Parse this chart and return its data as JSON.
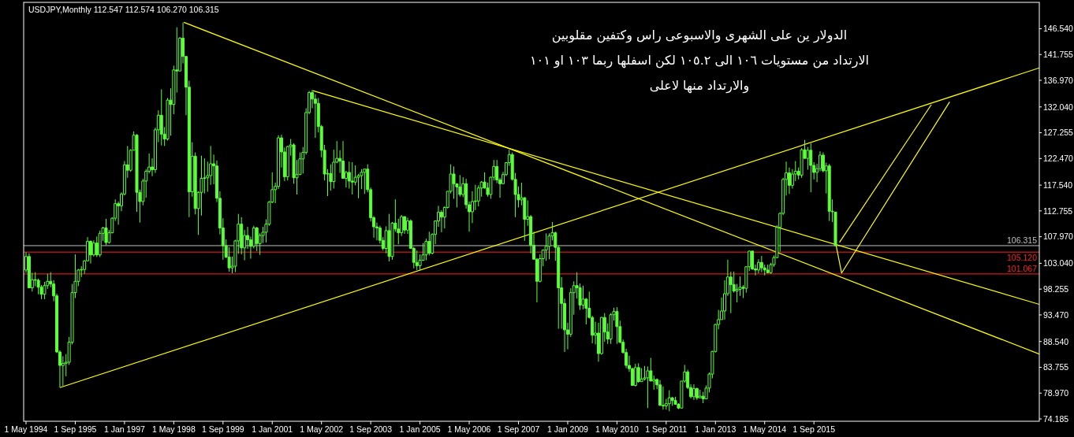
{
  "chart_data": {
    "type": "candlestick",
    "title": "USDJPY,Monthly  112.547 112.574 106.270 106.315",
    "annotations": [
      "الدولار ين على الشهرى والاسبوعى راس وكتفين مقلوبين",
      "الارتداد من مستويات ١٠٦ الى ١٠٥.٢ لكن اسفلها ربما ١٠٣ او ١٠١",
      "والارتداد منها لاعلى"
    ],
    "color": "#5cff3a",
    "x": [
      "1994-05",
      "1994-06",
      "1994-07",
      "1994-08",
      "1994-09",
      "1994-10",
      "1994-11",
      "1994-12",
      "1995-01",
      "1995-02",
      "1995-03",
      "1995-04",
      "1995-05",
      "1995-06",
      "1995-07",
      "1995-08",
      "1995-09",
      "1995-10",
      "1995-11",
      "1995-12",
      "1996-01",
      "1996-02",
      "1996-03",
      "1996-04",
      "1996-05",
      "1996-06",
      "1996-07",
      "1996-08",
      "1996-09",
      "1996-10",
      "1996-11",
      "1996-12",
      "1997-01",
      "1997-02",
      "1997-03",
      "1997-04",
      "1997-05",
      "1997-06",
      "1997-07",
      "1997-08",
      "1997-09",
      "1997-10",
      "1997-11",
      "1997-12",
      "1998-01",
      "1998-02",
      "1998-03",
      "1998-04",
      "1998-05",
      "1998-06",
      "1998-07",
      "1998-08",
      "1998-09",
      "1998-10",
      "1998-11",
      "1998-12",
      "1999-01",
      "1999-02",
      "1999-03",
      "1999-04",
      "1999-05",
      "1999-06",
      "1999-07",
      "1999-08",
      "1999-09",
      "1999-10",
      "1999-11",
      "1999-12",
      "2000-01",
      "2000-02",
      "2000-03",
      "2000-04",
      "2000-05",
      "2000-06",
      "2000-07",
      "2000-08",
      "2000-09",
      "2000-10",
      "2000-11",
      "2000-12",
      "2001-01",
      "2001-02",
      "2001-03",
      "2001-04",
      "2001-05",
      "2001-06",
      "2001-07",
      "2001-08",
      "2001-09",
      "2001-10",
      "2001-11",
      "2001-12",
      "2002-01",
      "2002-02",
      "2002-03",
      "2002-04",
      "2002-05",
      "2002-06",
      "2002-07",
      "2002-08",
      "2002-09",
      "2002-10",
      "2002-11",
      "2002-12",
      "2003-01",
      "2003-02",
      "2003-03",
      "2003-04",
      "2003-05",
      "2003-06",
      "2003-07",
      "2003-08",
      "2003-09",
      "2003-10",
      "2003-11",
      "2003-12",
      "2004-01",
      "2004-02",
      "2004-03",
      "2004-04",
      "2004-05",
      "2004-06",
      "2004-07",
      "2004-08",
      "2004-09",
      "2004-10",
      "2004-11",
      "2004-12",
      "2005-01",
      "2005-02",
      "2005-03",
      "2005-04",
      "2005-05",
      "2005-06",
      "2005-07",
      "2005-08",
      "2005-09",
      "2005-10",
      "2005-11",
      "2005-12",
      "2006-01",
      "2006-02",
      "2006-03",
      "2006-04",
      "2006-05",
      "2006-06",
      "2006-07",
      "2006-08",
      "2006-09",
      "2006-10",
      "2006-11",
      "2006-12",
      "2007-01",
      "2007-02",
      "2007-03",
      "2007-04",
      "2007-05",
      "2007-06",
      "2007-07",
      "2007-08",
      "2007-09",
      "2007-10",
      "2007-11",
      "2007-12",
      "2008-01",
      "2008-02",
      "2008-03",
      "2008-04",
      "2008-05",
      "2008-06",
      "2008-07",
      "2008-08",
      "2008-09",
      "2008-10",
      "2008-11",
      "2008-12",
      "2009-01",
      "2009-02",
      "2009-03",
      "2009-04",
      "2009-05",
      "2009-06",
      "2009-07",
      "2009-08",
      "2009-09",
      "2009-10",
      "2009-11",
      "2009-12",
      "2010-01",
      "2010-02",
      "2010-03",
      "2010-04",
      "2010-05",
      "2010-06",
      "2010-07",
      "2010-08",
      "2010-09",
      "2010-10",
      "2010-11",
      "2010-12",
      "2011-01",
      "2011-02",
      "2011-03",
      "2011-04",
      "2011-05",
      "2011-06",
      "2011-07",
      "2011-08",
      "2011-09",
      "2011-10",
      "2011-11",
      "2011-12",
      "2012-01",
      "2012-02",
      "2012-03",
      "2012-04",
      "2012-05",
      "2012-06",
      "2012-07",
      "2012-08",
      "2012-09",
      "2012-10",
      "2012-11",
      "2012-12",
      "2013-01",
      "2013-02",
      "2013-03",
      "2013-04",
      "2013-05",
      "2013-06",
      "2013-07",
      "2013-08",
      "2013-09",
      "2013-10",
      "2013-11",
      "2013-12",
      "2014-01",
      "2014-02",
      "2014-03",
      "2014-04",
      "2014-05",
      "2014-06",
      "2014-07",
      "2014-08",
      "2014-09",
      "2014-10",
      "2014-11",
      "2014-12",
      "2015-01",
      "2015-02",
      "2015-03",
      "2015-04",
      "2015-05",
      "2015-06",
      "2015-07",
      "2015-08",
      "2015-09",
      "2015-10",
      "2015-11",
      "2015-12",
      "2016-01",
      "2016-02",
      "2016-03",
      "2016-04"
    ],
    "ohlc": [
      [
        101.8,
        105.1,
        101.3,
        104.3
      ],
      [
        104.3,
        104.9,
        98.4,
        98.5
      ],
      [
        98.5,
        101.3,
        97.8,
        100.0
      ],
      [
        100.0,
        101.4,
        98.8,
        99.9
      ],
      [
        99.9,
        100.2,
        97.3,
        98.6
      ],
      [
        98.6,
        99.0,
        96.4,
        97.3
      ],
      [
        97.3,
        99.6,
        96.4,
        98.9
      ],
      [
        98.9,
        101.1,
        98.3,
        99.7
      ],
      [
        99.7,
        101.4,
        98.6,
        99.2
      ],
      [
        99.2,
        99.9,
        96.0,
        97.0
      ],
      [
        97.0,
        97.4,
        86.4,
        86.6
      ],
      [
        86.6,
        86.9,
        80.0,
        84.1
      ],
      [
        84.1,
        85.8,
        80.3,
        84.5
      ],
      [
        84.5,
        86.2,
        82.1,
        84.7
      ],
      [
        84.7,
        89.4,
        84.2,
        88.4
      ],
      [
        88.4,
        99.2,
        88.0,
        97.6
      ],
      [
        97.6,
        104.7,
        96.6,
        99.7
      ],
      [
        99.7,
        102.0,
        98.8,
        101.8
      ],
      [
        101.8,
        102.5,
        100.5,
        101.9
      ],
      [
        101.9,
        103.6,
        101.1,
        103.5
      ],
      [
        103.5,
        107.9,
        103.4,
        107.1
      ],
      [
        107.1,
        107.3,
        103.0,
        104.6
      ],
      [
        104.6,
        107.3,
        104.3,
        106.8
      ],
      [
        106.8,
        108.0,
        104.2,
        104.6
      ],
      [
        104.6,
        109.1,
        104.2,
        108.6
      ],
      [
        108.6,
        109.8,
        107.2,
        109.6
      ],
      [
        109.6,
        111.3,
        106.4,
        106.9
      ],
      [
        106.9,
        109.2,
        106.7,
        108.7
      ],
      [
        108.7,
        111.6,
        108.6,
        111.4
      ],
      [
        111.4,
        114.9,
        110.9,
        114.1
      ],
      [
        114.1,
        114.5,
        110.2,
        113.7
      ],
      [
        113.7,
        116.2,
        112.7,
        115.9
      ],
      [
        115.9,
        122.0,
        115.6,
        121.3
      ],
      [
        121.3,
        124.8,
        118.9,
        120.3
      ],
      [
        120.3,
        124.2,
        120.0,
        124.0
      ],
      [
        124.0,
        127.5,
        124.0,
        126.8
      ],
      [
        126.8,
        127.0,
        112.6,
        116.2
      ],
      [
        116.2,
        116.7,
        110.6,
        114.5
      ],
      [
        114.5,
        118.7,
        113.8,
        118.3
      ],
      [
        118.3,
        120.5,
        115.2,
        120.1
      ],
      [
        120.1,
        123.4,
        119.7,
        120.9
      ],
      [
        120.9,
        122.5,
        119.2,
        120.4
      ],
      [
        120.4,
        128.2,
        119.8,
        127.8
      ],
      [
        127.8,
        131.4,
        125.5,
        130.5
      ],
      [
        130.5,
        135.3,
        124.9,
        127.0
      ],
      [
        127.0,
        128.3,
        124.8,
        126.1
      ],
      [
        126.1,
        133.7,
        125.8,
        133.3
      ],
      [
        133.3,
        135.5,
        126.7,
        132.5
      ],
      [
        132.5,
        139.7,
        130.7,
        138.9
      ],
      [
        138.9,
        146.8,
        134.7,
        138.7
      ],
      [
        138.7,
        145.0,
        138.7,
        144.8
      ],
      [
        144.8,
        147.7,
        140.1,
        141.4
      ],
      [
        141.4,
        141.5,
        130.5,
        135.7
      ],
      [
        135.7,
        136.9,
        111.6,
        116.3
      ],
      [
        116.3,
        125.5,
        115.4,
        122.9
      ],
      [
        122.9,
        123.6,
        112.1,
        113.2
      ],
      [
        113.2,
        116.4,
        108.3,
        116.2
      ],
      [
        116.2,
        123.0,
        111.9,
        118.8
      ],
      [
        118.8,
        122.5,
        116.0,
        118.9
      ],
      [
        118.9,
        121.9,
        116.3,
        119.3
      ],
      [
        119.3,
        124.8,
        117.6,
        121.5
      ],
      [
        121.5,
        123.2,
        117.7,
        121.1
      ],
      [
        121.1,
        122.1,
        114.4,
        115.1
      ],
      [
        115.1,
        116.4,
        108.4,
        109.6
      ],
      [
        109.6,
        111.4,
        103.7,
        106.3
      ],
      [
        106.3,
        107.5,
        104.0,
        104.2
      ],
      [
        104.2,
        106.0,
        101.5,
        102.2
      ],
      [
        102.2,
        104.3,
        101.2,
        102.5
      ],
      [
        102.5,
        107.4,
        101.4,
        107.2
      ],
      [
        107.2,
        112.2,
        104.8,
        110.3
      ],
      [
        110.3,
        111.6,
        104.7,
        105.9
      ],
      [
        105.9,
        109.2,
        103.6,
        108.2
      ],
      [
        108.2,
        109.8,
        105.7,
        107.4
      ],
      [
        107.4,
        108.0,
        103.9,
        106.2
      ],
      [
        106.2,
        110.0,
        105.8,
        109.6
      ],
      [
        109.6,
        109.8,
        105.3,
        106.7
      ],
      [
        106.7,
        108.6,
        104.6,
        108.2
      ],
      [
        108.2,
        109.8,
        106.8,
        108.8
      ],
      [
        108.8,
        111.2,
        106.9,
        110.3
      ],
      [
        110.3,
        114.6,
        110.0,
        114.4
      ],
      [
        114.4,
        119.9,
        114.2,
        116.7
      ],
      [
        116.7,
        118.0,
        114.2,
        117.3
      ],
      [
        117.3,
        126.8,
        116.8,
        126.3
      ],
      [
        126.3,
        126.9,
        120.8,
        123.7
      ],
      [
        123.7,
        124.5,
        118.3,
        119.1
      ],
      [
        119.1,
        124.8,
        118.4,
        124.7
      ],
      [
        124.7,
        126.1,
        123.0,
        125.0
      ],
      [
        125.0,
        125.3,
        117.8,
        118.9
      ],
      [
        118.9,
        122.2,
        115.8,
        119.5
      ],
      [
        119.5,
        123.6,
        119.4,
        122.4
      ],
      [
        122.4,
        124.6,
        119.7,
        123.6
      ],
      [
        123.6,
        131.8,
        123.2,
        131.0
      ],
      [
        131.0,
        135.0,
        130.7,
        134.7
      ],
      [
        134.7,
        135.2,
        131.8,
        133.5
      ],
      [
        133.5,
        134.4,
        126.3,
        132.7
      ],
      [
        132.7,
        133.7,
        127.3,
        128.4
      ],
      [
        128.4,
        128.7,
        122.7,
        124.0
      ],
      [
        124.0,
        125.0,
        118.4,
        119.6
      ],
      [
        119.6,
        120.5,
        115.5,
        119.7
      ],
      [
        119.7,
        121.4,
        116.5,
        118.2
      ],
      [
        118.2,
        124.1,
        116.9,
        121.8
      ],
      [
        121.8,
        125.7,
        121.6,
        122.5
      ],
      [
        122.5,
        124.0,
        119.8,
        122.0
      ],
      [
        122.0,
        125.7,
        118.8,
        118.8
      ],
      [
        118.8,
        120.2,
        117.1,
        119.9
      ],
      [
        119.9,
        121.9,
        116.9,
        118.3
      ],
      [
        118.3,
        121.8,
        115.8,
        118.1
      ],
      [
        118.1,
        121.2,
        117.5,
        119.0
      ],
      [
        119.0,
        119.6,
        115.1,
        119.3
      ],
      [
        119.3,
        120.5,
        116.8,
        119.9
      ],
      [
        119.9,
        120.6,
        115.9,
        120.5
      ],
      [
        120.5,
        121.4,
        116.2,
        116.7
      ],
      [
        116.7,
        117.1,
        110.8,
        111.5
      ],
      [
        111.5,
        111.8,
        107.8,
        109.8
      ],
      [
        109.8,
        110.6,
        107.3,
        109.6
      ],
      [
        109.6,
        110.0,
        106.7,
        107.3
      ],
      [
        107.3,
        107.9,
        105.4,
        105.8
      ],
      [
        105.8,
        109.9,
        104.9,
        109.1
      ],
      [
        109.1,
        112.2,
        103.4,
        104.3
      ],
      [
        104.3,
        110.7,
        103.7,
        110.5
      ],
      [
        110.5,
        114.9,
        108.9,
        109.4
      ],
      [
        109.4,
        111.3,
        106.6,
        108.7
      ],
      [
        108.7,
        112.0,
        108.1,
        111.7
      ],
      [
        111.7,
        111.7,
        108.5,
        109.2
      ],
      [
        109.2,
        111.5,
        108.5,
        110.9
      ],
      [
        110.9,
        111.2,
        105.7,
        105.8
      ],
      [
        105.8,
        106.1,
        102.1,
        103.2
      ],
      [
        103.2,
        105.4,
        101.8,
        102.6
      ],
      [
        102.6,
        104.7,
        101.7,
        103.6
      ],
      [
        103.6,
        106.8,
        103.5,
        104.6
      ],
      [
        104.6,
        107.6,
        103.6,
        107.1
      ],
      [
        107.1,
        108.9,
        104.5,
        104.9
      ],
      [
        104.9,
        108.6,
        104.7,
        108.4
      ],
      [
        108.4,
        111.0,
        106.6,
        110.9
      ],
      [
        110.9,
        113.7,
        109.8,
        112.5
      ],
      [
        112.5,
        112.9,
        108.8,
        111.6
      ],
      [
        111.6,
        113.6,
        109.5,
        113.4
      ],
      [
        113.4,
        116.4,
        113.2,
        116.4
      ],
      [
        116.4,
        121.4,
        116.0,
        119.6
      ],
      [
        119.6,
        121.0,
        115.0,
        117.8
      ],
      [
        117.8,
        117.8,
        113.4,
        117.2
      ],
      [
        117.2,
        119.4,
        115.4,
        115.8
      ],
      [
        115.8,
        119.0,
        115.3,
        117.8
      ],
      [
        117.8,
        118.7,
        113.2,
        113.9
      ],
      [
        113.9,
        114.5,
        108.9,
        112.6
      ],
      [
        112.6,
        116.4,
        110.5,
        114.5
      ],
      [
        114.5,
        117.6,
        112.9,
        114.6
      ],
      [
        114.6,
        117.5,
        113.6,
        117.0
      ],
      [
        117.0,
        118.3,
        115.4,
        118.1
      ],
      [
        118.1,
        119.9,
        116.9,
        117.0
      ],
      [
        117.0,
        118.0,
        115.4,
        115.8
      ],
      [
        115.8,
        119.1,
        115.0,
        119.0
      ],
      [
        119.0,
        122.2,
        118.4,
        121.0
      ],
      [
        121.0,
        122.2,
        117.9,
        118.5
      ],
      [
        118.5,
        118.9,
        115.2,
        117.8
      ],
      [
        117.8,
        120.0,
        117.7,
        119.5
      ],
      [
        119.5,
        121.8,
        119.2,
        121.7
      ],
      [
        121.7,
        124.1,
        121.1,
        123.2
      ],
      [
        123.2,
        123.6,
        118.4,
        118.6
      ],
      [
        118.6,
        119.8,
        111.6,
        115.8
      ],
      [
        115.8,
        117.3,
        113.4,
        114.8
      ],
      [
        114.8,
        118.0,
        113.8,
        115.2
      ],
      [
        115.2,
        115.3,
        107.2,
        111.2
      ],
      [
        111.2,
        114.7,
        110.0,
        111.7
      ],
      [
        111.7,
        112.0,
        104.9,
        106.4
      ],
      [
        106.4,
        108.9,
        103.7,
        103.8
      ],
      [
        103.8,
        104.0,
        95.8,
        99.7
      ],
      [
        99.7,
        104.7,
        99.5,
        103.9
      ],
      [
        103.9,
        105.5,
        102.5,
        105.5
      ],
      [
        105.5,
        108.6,
        103.5,
        106.2
      ],
      [
        106.2,
        108.6,
        103.8,
        108.1
      ],
      [
        108.1,
        110.7,
        107.3,
        108.7
      ],
      [
        108.7,
        108.9,
        103.5,
        106.0
      ],
      [
        106.0,
        106.3,
        90.9,
        98.5
      ],
      [
        98.5,
        100.5,
        90.9,
        95.6
      ],
      [
        95.6,
        96.5,
        86.6,
        90.7
      ],
      [
        90.7,
        92.0,
        87.1,
        89.9
      ],
      [
        89.9,
        98.4,
        89.4,
        97.6
      ],
      [
        97.6,
        99.7,
        93.5,
        98.9
      ],
      [
        98.9,
        101.4,
        96.5,
        98.5
      ],
      [
        98.5,
        99.3,
        94.4,
        95.3
      ],
      [
        95.3,
        98.9,
        94.5,
        96.4
      ],
      [
        96.4,
        96.6,
        91.7,
        94.7
      ],
      [
        94.7,
        97.8,
        92.8,
        93.0
      ],
      [
        93.0,
        93.3,
        88.2,
        89.7
      ],
      [
        89.7,
        92.2,
        88.0,
        90.1
      ],
      [
        90.1,
        92.0,
        84.8,
        86.3
      ],
      [
        86.3,
        93.1,
        86.1,
        93.0
      ],
      [
        93.0,
        93.8,
        88.5,
        90.3
      ],
      [
        90.3,
        91.9,
        88.1,
        89.0
      ],
      [
        89.0,
        93.8,
        88.1,
        93.5
      ],
      [
        93.5,
        94.8,
        92.4,
        94.1
      ],
      [
        94.1,
        94.9,
        88.1,
        91.3
      ],
      [
        91.3,
        92.4,
        88.2,
        88.4
      ],
      [
        88.4,
        88.9,
        86.3,
        86.5
      ],
      [
        86.5,
        87.2,
        83.6,
        84.1
      ],
      [
        84.1,
        85.9,
        82.9,
        83.5
      ],
      [
        83.5,
        83.7,
        80.4,
        80.4
      ],
      [
        80.4,
        84.4,
        80.2,
        83.7
      ],
      [
        83.7,
        84.5,
        80.9,
        81.1
      ],
      [
        81.1,
        83.6,
        81.1,
        81.6
      ],
      [
        81.6,
        84.0,
        81.3,
        81.8
      ],
      [
        81.8,
        83.9,
        76.2,
        83.1
      ],
      [
        83.1,
        85.5,
        81.2,
        81.2
      ],
      [
        81.2,
        82.2,
        79.6,
        81.5
      ],
      [
        81.5,
        81.7,
        79.7,
        80.5
      ],
      [
        80.5,
        81.4,
        76.6,
        76.7
      ],
      [
        76.7,
        80.2,
        75.9,
        76.6
      ],
      [
        76.6,
        77.9,
        75.9,
        77.0
      ],
      [
        77.0,
        79.5,
        75.6,
        78.1
      ],
      [
        78.1,
        78.3,
        76.6,
        77.6
      ],
      [
        77.6,
        78.3,
        76.9,
        76.9
      ],
      [
        76.9,
        77.1,
        76.0,
        76.2
      ],
      [
        76.2,
        81.2,
        76.1,
        81.2
      ],
      [
        81.2,
        84.2,
        80.9,
        82.9
      ],
      [
        82.9,
        83.3,
        79.7,
        80.0
      ],
      [
        80.0,
        80.6,
        78.0,
        78.3
      ],
      [
        78.3,
        80.6,
        77.7,
        79.8
      ],
      [
        79.8,
        80.0,
        77.7,
        78.1
      ],
      [
        78.1,
        79.6,
        78.0,
        78.4
      ],
      [
        78.4,
        79.2,
        77.1,
        77.9
      ],
      [
        77.9,
        80.4,
        77.9,
        79.9
      ],
      [
        79.9,
        82.8,
        79.1,
        82.5
      ],
      [
        82.5,
        86.8,
        81.7,
        86.7
      ],
      [
        86.7,
        91.8,
        86.5,
        91.7
      ],
      [
        91.7,
        94.4,
        90.8,
        92.6
      ],
      [
        92.6,
        96.7,
        92.6,
        94.2
      ],
      [
        94.2,
        99.9,
        92.6,
        97.4
      ],
      [
        97.4,
        103.7,
        97.0,
        100.5
      ],
      [
        100.5,
        101.5,
        93.8,
        99.1
      ],
      [
        99.1,
        101.5,
        97.6,
        97.9
      ],
      [
        97.9,
        99.2,
        95.8,
        98.2
      ],
      [
        98.2,
        100.6,
        97.0,
        98.6
      ],
      [
        98.6,
        99.0,
        96.6,
        98.4
      ],
      [
        98.4,
        102.5,
        97.6,
        102.4
      ],
      [
        102.4,
        105.4,
        101.6,
        105.3
      ],
      [
        105.3,
        105.4,
        101.8,
        102.0
      ],
      [
        102.0,
        102.8,
        100.8,
        101.8
      ],
      [
        101.8,
        103.8,
        101.2,
        103.2
      ],
      [
        103.2,
        104.4,
        101.4,
        102.2
      ],
      [
        102.2,
        102.8,
        100.8,
        101.8
      ],
      [
        101.8,
        102.8,
        101.2,
        101.3
      ],
      [
        101.3,
        103.1,
        101.1,
        102.8
      ],
      [
        102.8,
        104.5,
        102.4,
        104.1
      ],
      [
        104.1,
        110.1,
        104.0,
        109.7
      ],
      [
        109.7,
        112.5,
        105.2,
        112.3
      ],
      [
        112.3,
        118.9,
        112.0,
        118.6
      ],
      [
        118.6,
        121.9,
        115.6,
        119.8
      ],
      [
        119.8,
        120.8,
        115.9,
        117.5
      ],
      [
        117.5,
        120.5,
        116.9,
        119.6
      ],
      [
        119.6,
        122.0,
        118.3,
        120.1
      ],
      [
        120.1,
        120.8,
        118.6,
        119.4
      ],
      [
        119.4,
        124.4,
        118.9,
        124.1
      ],
      [
        124.1,
        125.9,
        122.5,
        122.5
      ],
      [
        122.5,
        124.6,
        120.4,
        124.0
      ],
      [
        124.0,
        125.3,
        116.2,
        121.2
      ],
      [
        121.2,
        121.8,
        118.6,
        119.9
      ],
      [
        119.9,
        121.5,
        118.1,
        120.6
      ],
      [
        120.6,
        123.8,
        120.1,
        123.1
      ],
      [
        123.1,
        123.6,
        119.9,
        120.2
      ],
      [
        120.2,
        121.7,
        116.0,
        121.1
      ],
      [
        121.1,
        121.5,
        110.9,
        112.7
      ],
      [
        112.7,
        114.9,
        110.7,
        112.6
      ],
      [
        112.547,
        112.574,
        106.27,
        106.315
      ]
    ],
    "series": [
      {
        "type": "line",
        "color": "#ffff00",
        "x": [
          "1995-04",
          "2021-10-08"
        ],
        "values": [
          79.99,
          139.28
        ]
      },
      {
        "type": "line",
        "color": "#ffff00",
        "x": [
          "1998-08-10",
          "2021-10-08"
        ],
        "values": [
          147.72,
          86.22
        ]
      },
      {
        "type": "line",
        "color": "#ffff00",
        "x": [
          "2002-02-06",
          "2021-10-08"
        ],
        "values": [
          135.05,
          95.43
        ]
      },
      {
        "type": "line",
        "color": "#ffff00",
        "x": [
          "2016-04-07",
          "2016-06",
          "2019-05-04"
        ],
        "values": [
          106.41,
          101.23,
          132.97
        ]
      },
      {
        "type": "line",
        "color": "#ffff00",
        "x": [
          "2016-05-10",
          "2018-11-05"
        ],
        "values": [
          106.92,
          132.45
        ]
      }
    ],
    "ref_lines": [
      {
        "axis": "y",
        "value": 106.315,
        "label": "106.315",
        "color": "#c0c0c0"
      },
      {
        "axis": "y",
        "value": 105.12,
        "label": "105.120",
        "color": "#ff2020"
      },
      {
        "axis": "y",
        "value": 101.067,
        "label": "101.067",
        "color": "#ff2020"
      }
    ],
    "xlim": [
      "1994-04-08",
      "2021-10-08"
    ],
    "ylim": [
      73.75,
      151.43
    ],
    "xticks": [
      {
        "value": "1994-05",
        "label": "1 May 1994"
      },
      {
        "value": "1995-09",
        "label": "1 Sep 1995"
      },
      {
        "value": "1997-01",
        "label": "1 Jan 1997"
      },
      {
        "value": "1998-05",
        "label": "1 May 1998"
      },
      {
        "value": "1999-09",
        "label": "1 Sep 1999"
      },
      {
        "value": "2001-01",
        "label": "1 Jan 2001"
      },
      {
        "value": "2002-05",
        "label": "1 May 2002"
      },
      {
        "value": "2003-09",
        "label": "1 Sep 2003"
      },
      {
        "value": "2005-01",
        "label": "1 Jan 2005"
      },
      {
        "value": "2006-05",
        "label": "1 May 2006"
      },
      {
        "value": "2007-09",
        "label": "1 Sep 2007"
      },
      {
        "value": "2009-01",
        "label": "1 Jan 2009"
      },
      {
        "value": "2010-05",
        "label": "1 May 2010"
      },
      {
        "value": "2011-09",
        "label": "1 Sep 2011"
      },
      {
        "value": "2013-01",
        "label": "1 Jan 2013"
      },
      {
        "value": "2014-05",
        "label": "1 May 2014"
      },
      {
        "value": "2015-09",
        "label": "1 Sep 2015"
      }
    ],
    "yticks": [
      {
        "value": 74.185,
        "label": "74.185"
      },
      {
        "value": 78.97,
        "label": "78.970"
      },
      {
        "value": 83.755,
        "label": "83.755"
      },
      {
        "value": 88.54,
        "label": "88.540"
      },
      {
        "value": 93.47,
        "label": "93.470"
      },
      {
        "value": 98.255,
        "label": "98.255"
      },
      {
        "value": 103.04,
        "label": "103.040"
      },
      {
        "value": 107.97,
        "label": "107.970"
      },
      {
        "value": 112.755,
        "label": "112.755"
      },
      {
        "value": 117.54,
        "label": "117.540"
      },
      {
        "value": 122.47,
        "label": "122.470"
      },
      {
        "value": 127.255,
        "label": "127.255"
      },
      {
        "value": 132.04,
        "label": "132.040"
      },
      {
        "value": 136.97,
        "label": "136.970"
      },
      {
        "value": 141.755,
        "label": "141.755"
      },
      {
        "value": 146.54,
        "label": "146.540"
      }
    ]
  }
}
